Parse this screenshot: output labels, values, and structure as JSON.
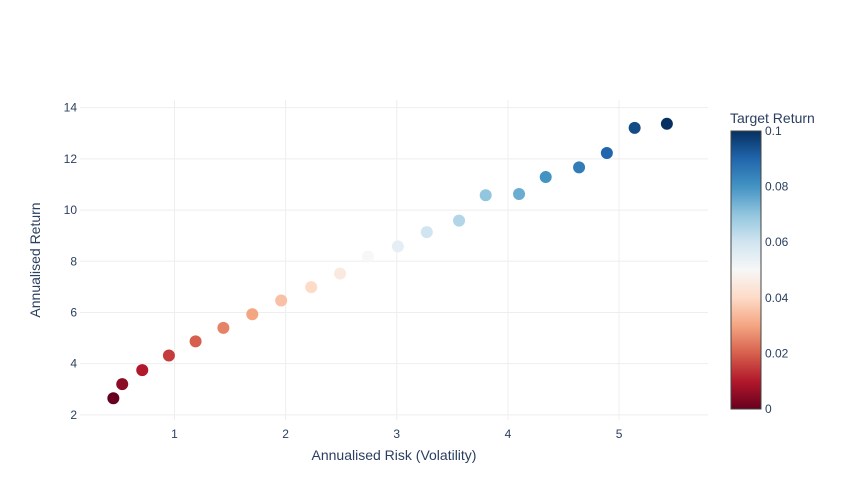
{
  "chart_data": {
    "type": "scatter",
    "title": "",
    "xlabel": "Annualised Risk (Volatility)",
    "ylabel": "Annualised Return",
    "xlim": [
      0.15,
      5.8
    ],
    "ylim": [
      1.8,
      14.3
    ],
    "xticks": [
      1,
      2,
      3,
      4,
      5
    ],
    "yticks": [
      2,
      4,
      6,
      8,
      10,
      12,
      14
    ],
    "grid": true,
    "colorbar": {
      "title": "Target Return",
      "range": [
        0,
        0.1
      ],
      "ticks": [
        "0",
        "0.02",
        "0.04",
        "0.06",
        "0.08",
        "0.1"
      ],
      "tick_values": [
        0,
        0.02,
        0.04,
        0.06,
        0.08,
        0.1
      ],
      "colorscale": [
        "#67001f",
        "#b2182b",
        "#d6604d",
        "#f4a582",
        "#fddbc7",
        "#f7f7f7",
        "#d1e5f0",
        "#92c5de",
        "#4393c3",
        "#2166ac",
        "#053061"
      ]
    },
    "points": [
      {
        "x": 0.45,
        "y": 2.65,
        "c": 0.0
      },
      {
        "x": 0.53,
        "y": 3.2,
        "c": 0.005
      },
      {
        "x": 0.71,
        "y": 3.75,
        "c": 0.01
      },
      {
        "x": 0.95,
        "y": 4.32,
        "c": 0.015
      },
      {
        "x": 1.19,
        "y": 4.87,
        "c": 0.02
      },
      {
        "x": 1.44,
        "y": 5.4,
        "c": 0.025
      },
      {
        "x": 1.7,
        "y": 5.93,
        "c": 0.03
      },
      {
        "x": 1.96,
        "y": 6.47,
        "c": 0.035
      },
      {
        "x": 2.23,
        "y": 6.99,
        "c": 0.04
      },
      {
        "x": 2.49,
        "y": 7.52,
        "c": 0.045
      },
      {
        "x": 2.74,
        "y": 8.18,
        "c": 0.05
      },
      {
        "x": 3.01,
        "y": 8.58,
        "c": 0.055
      },
      {
        "x": 3.27,
        "y": 9.14,
        "c": 0.06
      },
      {
        "x": 3.56,
        "y": 9.59,
        "c": 0.065
      },
      {
        "x": 3.8,
        "y": 10.58,
        "c": 0.07
      },
      {
        "x": 4.1,
        "y": 10.63,
        "c": 0.075
      },
      {
        "x": 4.34,
        "y": 11.29,
        "c": 0.08
      },
      {
        "x": 4.64,
        "y": 11.67,
        "c": 0.085
      },
      {
        "x": 4.89,
        "y": 12.23,
        "c": 0.09
      },
      {
        "x": 5.14,
        "y": 13.21,
        "c": 0.095
      },
      {
        "x": 5.43,
        "y": 13.37,
        "c": 0.1
      }
    ]
  }
}
